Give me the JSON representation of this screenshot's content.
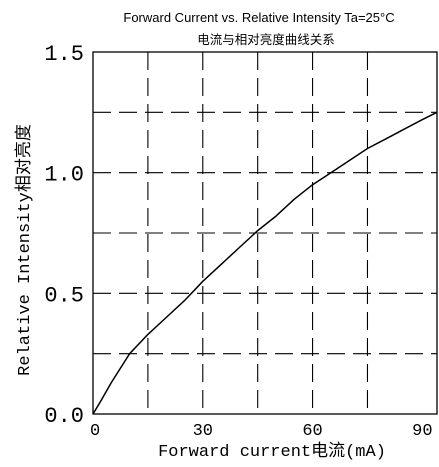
{
  "chart_data": {
    "type": "line",
    "title": "Forward Current vs. Relative Intensity  Ta=25°C",
    "subtitle": "电流与相对亮度曲线关系",
    "xlabel": "Forward current电流(mA)",
    "ylabel": "Relative Intensity相对亮度",
    "xlim": [
      0,
      94
    ],
    "ylim": [
      0,
      1.5
    ],
    "x_ticks": [
      0,
      30,
      60,
      90
    ],
    "x_tick_labels": [
      "0",
      "30",
      "60",
      "90"
    ],
    "y_ticks": [
      0,
      0.5,
      1.0,
      1.5
    ],
    "y_tick_labels": [
      "0.0",
      "0.5",
      "1.0",
      "1.5"
    ],
    "grid": true,
    "grid_style": "dashed",
    "x_gridlines": [
      15,
      30,
      45,
      60,
      75
    ],
    "y_gridlines": [
      0.25,
      0.5,
      0.75,
      1.0,
      1.25
    ],
    "series": [
      {
        "color": "#000000",
        "x": [
          0,
          2,
          5,
          10,
          15,
          20,
          25,
          30,
          35,
          40,
          45,
          50,
          55,
          60,
          65,
          70,
          75,
          80,
          85,
          90,
          94
        ],
        "y": [
          0,
          0.05,
          0.13,
          0.25,
          0.33,
          0.4,
          0.47,
          0.55,
          0.62,
          0.69,
          0.76,
          0.82,
          0.89,
          0.95,
          1.0,
          1.05,
          1.1,
          1.14,
          1.18,
          1.22,
          1.25
        ]
      }
    ]
  }
}
